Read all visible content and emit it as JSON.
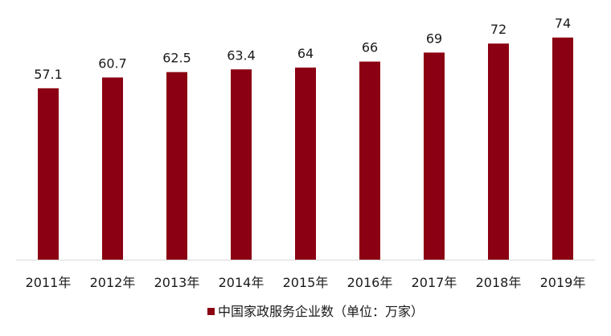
{
  "chart_data": {
    "type": "bar",
    "categories": [
      "2011年",
      "2012年",
      "2013年",
      "2014年",
      "2015年",
      "2016年",
      "2017年",
      "2018年",
      "2019年"
    ],
    "series": [
      {
        "name": "中国家政服务企业数（单位：万家）",
        "values": [
          57.1,
          60.7,
          62.5,
          63.4,
          64,
          66,
          69,
          72,
          74
        ],
        "labels": [
          "57.1",
          "60.7",
          "62.5",
          "63.4",
          "64",
          "66",
          "69",
          "72",
          "74"
        ],
        "color": "#8b0012"
      }
    ],
    "ylim": [
      0,
      75
    ],
    "grid": false,
    "legend_position": "bottom-center",
    "axis_color": "#d9d9d9"
  }
}
